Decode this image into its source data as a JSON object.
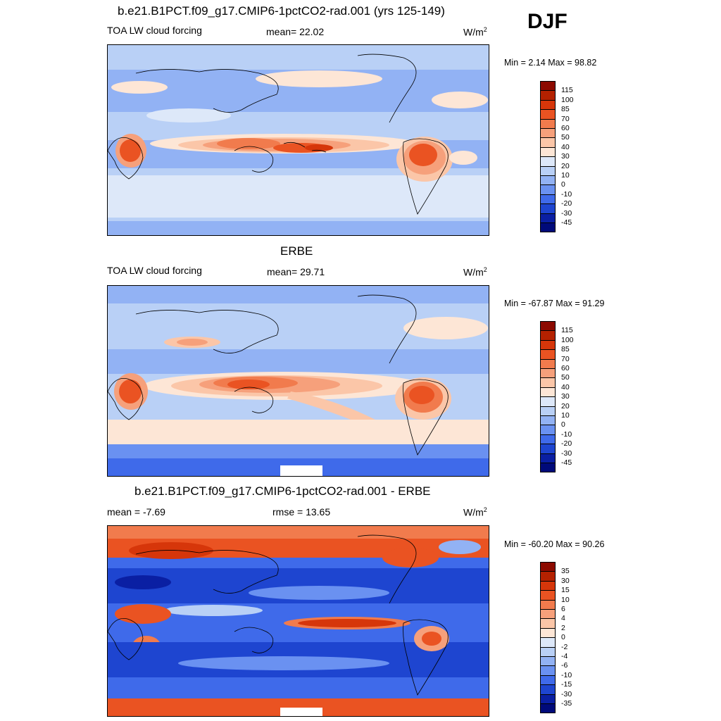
{
  "season": "DJF",
  "panels": [
    {
      "title": "b.e21.B1PCT.f09_g17.CMIP6-1pctCO2-rad.001 (yrs 125-149)",
      "left_label": "TOA LW cloud forcing",
      "center_label": "mean=  22.02",
      "units": "W/m",
      "units_sup": "2",
      "minmax": "Min =   2.14 Max =  98.82",
      "colorbar": {
        "labels": [
          "115",
          "100",
          "85",
          "70",
          "60",
          "50",
          "40",
          "30",
          "20",
          "10",
          "0",
          "-10",
          "-20",
          "-30",
          "-45"
        ],
        "colors": [
          "#8c0a00",
          "#b42100",
          "#d6360a",
          "#ea5322",
          "#f17b4d",
          "#f6a07b",
          "#fbc6a8",
          "#fde6d6",
          "#dde8f9",
          "#b9d0f6",
          "#92b2f4",
          "#6a91f1",
          "#3f6aea",
          "#1e45d0",
          "#0a1fa3",
          "#000a7a"
        ]
      },
      "map_layer": "model"
    },
    {
      "title": "ERBE",
      "left_label": "TOA LW cloud forcing",
      "center_label": "mean=  29.71",
      "units": "W/m",
      "units_sup": "2",
      "minmax": "Min = -67.87 Max =  91.29",
      "colorbar": {
        "labels": [
          "115",
          "100",
          "85",
          "70",
          "60",
          "50",
          "40",
          "30",
          "20",
          "10",
          "0",
          "-10",
          "-20",
          "-30",
          "-45"
        ],
        "colors": [
          "#8c0a00",
          "#b42100",
          "#d6360a",
          "#ea5322",
          "#f17b4d",
          "#f6a07b",
          "#fbc6a8",
          "#fde6d6",
          "#dde8f9",
          "#b9d0f6",
          "#92b2f4",
          "#6a91f1",
          "#3f6aea",
          "#1e45d0",
          "#0a1fa3",
          "#000a7a"
        ]
      },
      "map_layer": "obs"
    },
    {
      "title": "b.e21.B1PCT.f09_g17.CMIP6-1pctCO2-rad.001 - ERBE",
      "left_label": "mean =  -7.69",
      "center_label": "rmse =  13.65",
      "units": "W/m",
      "units_sup": "2",
      "minmax": "Min = -60.20 Max =  90.26",
      "colorbar": {
        "labels": [
          "35",
          "30",
          "15",
          "10",
          "6",
          "4",
          "2",
          "0",
          "-2",
          "-4",
          "-6",
          "-10",
          "-15",
          "-30",
          "-35"
        ],
        "colors": [
          "#8c0a00",
          "#b42100",
          "#d6360a",
          "#ea5322",
          "#f17b4d",
          "#f6a07b",
          "#fbc6a8",
          "#fde6d6",
          "#dde8f9",
          "#b9d0f6",
          "#92b2f4",
          "#6a91f1",
          "#3f6aea",
          "#1e45d0",
          "#0a1fa3",
          "#000a7a"
        ]
      },
      "map_layer": "diff"
    }
  ]
}
